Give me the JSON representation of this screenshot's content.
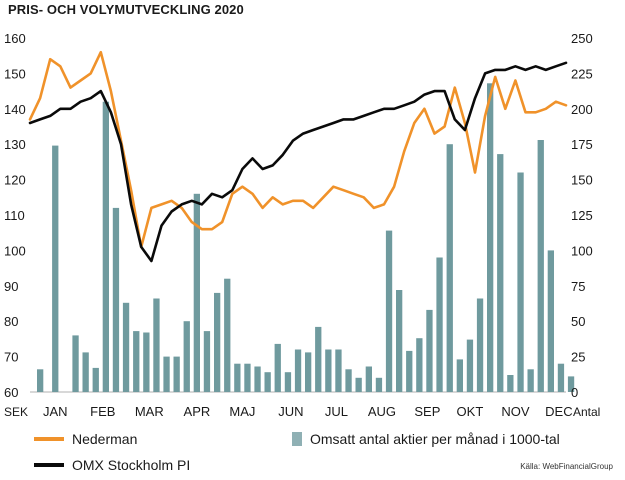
{
  "title": "PRIS- OCH VOLYMUTVECKLING 2020",
  "source": "Källa: WebFinancialGroup",
  "colors": {
    "nederman": "#f0922a",
    "omx": "#0a0a0a",
    "bars": "#6f9a9e",
    "legend_bar": "#8fb0b4"
  },
  "chart_data": {
    "type": "line",
    "x_unit": "week",
    "months": [
      "JAN",
      "FEB",
      "MAR",
      "APR",
      "MAJ",
      "JUN",
      "JUL",
      "AUG",
      "SEP",
      "OKT",
      "NOV",
      "DEC"
    ],
    "left_axis": {
      "unit": "SEK",
      "range": [
        60,
        160
      ],
      "ticks": [
        60,
        70,
        80,
        90,
        100,
        110,
        120,
        130,
        140,
        150,
        160
      ]
    },
    "right_axis": {
      "unit": "Antal",
      "range": [
        0,
        250
      ],
      "ticks": [
        0,
        25,
        50,
        75,
        100,
        125,
        150,
        175,
        200,
        225,
        250
      ]
    },
    "legend": [
      "Nederman",
      "Omsatt antal aktier per månad i 1000-tal",
      "OMX Stockholm PI"
    ],
    "series": [
      {
        "name": "Nederman",
        "axis": "left",
        "x": [
          0,
          1,
          2,
          3,
          4,
          5,
          6,
          7,
          8,
          9,
          10,
          11,
          12,
          13,
          14,
          15,
          16,
          17,
          18,
          19,
          20,
          21,
          22,
          23,
          24,
          25,
          26,
          27,
          28,
          29,
          30,
          31,
          32,
          33,
          34,
          35,
          36,
          37,
          38,
          39,
          40,
          41,
          42,
          43,
          44,
          45,
          46,
          47,
          48,
          49,
          50,
          51,
          52,
          53
        ],
        "values": [
          137,
          143,
          154,
          152,
          146,
          148,
          150,
          156,
          145,
          131,
          117,
          101,
          112,
          113,
          114,
          112,
          108,
          106,
          106,
          108,
          116,
          118,
          116,
          112,
          115,
          113,
          114,
          114,
          112,
          115,
          118,
          117,
          116,
          115,
          112,
          113,
          118,
          128,
          136,
          140,
          133,
          135,
          146,
          136,
          122,
          138,
          149,
          140,
          148,
          139,
          139,
          140,
          142,
          141
        ]
      },
      {
        "name": "OMX Stockholm PI",
        "axis": "left",
        "x": [
          0,
          1,
          2,
          3,
          4,
          5,
          6,
          7,
          8,
          9,
          10,
          11,
          12,
          13,
          14,
          15,
          16,
          17,
          18,
          19,
          20,
          21,
          22,
          23,
          24,
          25,
          26,
          27,
          28,
          29,
          30,
          31,
          32,
          33,
          34,
          35,
          36,
          37,
          38,
          39,
          40,
          41,
          42,
          43,
          44,
          45,
          46,
          47,
          48,
          49,
          50,
          51,
          52,
          53
        ],
        "values": [
          136,
          137,
          138,
          140,
          140,
          142,
          143,
          145,
          139,
          130,
          113,
          101,
          97,
          107,
          111,
          113,
          114,
          113,
          116,
          115,
          117,
          123,
          126,
          123,
          124,
          127,
          131,
          133,
          134,
          135,
          136,
          137,
          137,
          138,
          139,
          140,
          140,
          141,
          142,
          144,
          145,
          145,
          137,
          134,
          143,
          150,
          151,
          151,
          152,
          151,
          152,
          151,
          152,
          153
        ]
      }
    ],
    "bars": {
      "name": "Omsatt antal aktier per månad i 1000-tal",
      "axis": "right",
      "x": [
        0.5,
        2,
        4,
        5,
        6,
        7,
        8,
        9,
        10,
        11,
        12,
        13,
        14,
        15,
        16,
        17,
        18,
        19,
        20,
        21,
        22,
        23,
        24,
        25,
        26,
        27,
        28,
        29,
        30,
        31,
        32,
        33,
        34,
        35,
        36,
        37,
        38,
        39,
        40,
        41,
        42,
        43,
        44,
        45,
        46,
        47,
        48,
        49,
        50,
        51,
        52,
        53
      ],
      "values": [
        16,
        174,
        40,
        28,
        17,
        205,
        130,
        63,
        43,
        42,
        66,
        25,
        25,
        50,
        140,
        43,
        70,
        80,
        20,
        20,
        18,
        14,
        34,
        14,
        30,
        28,
        46,
        30,
        30,
        16,
        10,
        18,
        10,
        114,
        72,
        29,
        38,
        58,
        95,
        175,
        23,
        37,
        66,
        218,
        168,
        12,
        155,
        16,
        178,
        100,
        20,
        11
      ]
    }
  }
}
